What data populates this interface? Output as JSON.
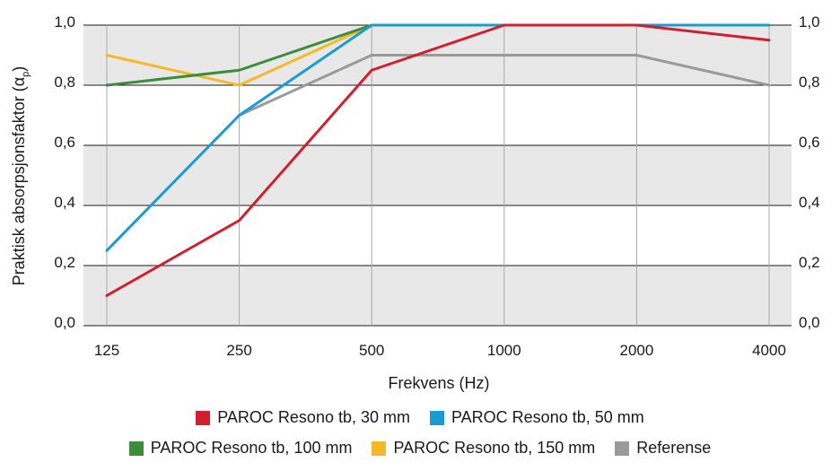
{
  "chart_data": {
    "type": "line",
    "categories": [
      "125",
      "250",
      "500",
      "1000",
      "2000",
      "4000"
    ],
    "xlabel": "Frekvens (Hz)",
    "ylabel": "Praktisk absorpsjonsfaktor (α",
    "ylabel_sub": "p",
    "ylabel_close": ")",
    "ylim": [
      0,
      1
    ],
    "yticks": [
      "0,0",
      "0,2",
      "0,4",
      "0,6",
      "0,8",
      "1,0"
    ],
    "grid": true,
    "legend_position": "bottom",
    "series": [
      {
        "name": "PAROC Resono tb, 30 mm",
        "color": "#d21f2f",
        "values": [
          0.1,
          0.35,
          0.85,
          1.0,
          1.0,
          0.95
        ]
      },
      {
        "name": "PAROC Resono tb, 50 mm",
        "color": "#1a9cd0",
        "values": [
          0.25,
          0.7,
          1.0,
          1.0,
          1.0,
          1.0
        ]
      },
      {
        "name": "PAROC Resono tb, 100 mm",
        "color": "#3c8c3a",
        "values": [
          0.8,
          0.85,
          1.0,
          null,
          null,
          null
        ]
      },
      {
        "name": "PAROC Resono tb, 150 mm",
        "color": "#f5b829",
        "values": [
          0.9,
          0.8,
          1.0,
          null,
          null,
          null
        ]
      },
      {
        "name": "Referense",
        "color": "#9a9a9a",
        "values": [
          null,
          0.7,
          0.9,
          0.9,
          0.9,
          0.8
        ]
      }
    ]
  }
}
